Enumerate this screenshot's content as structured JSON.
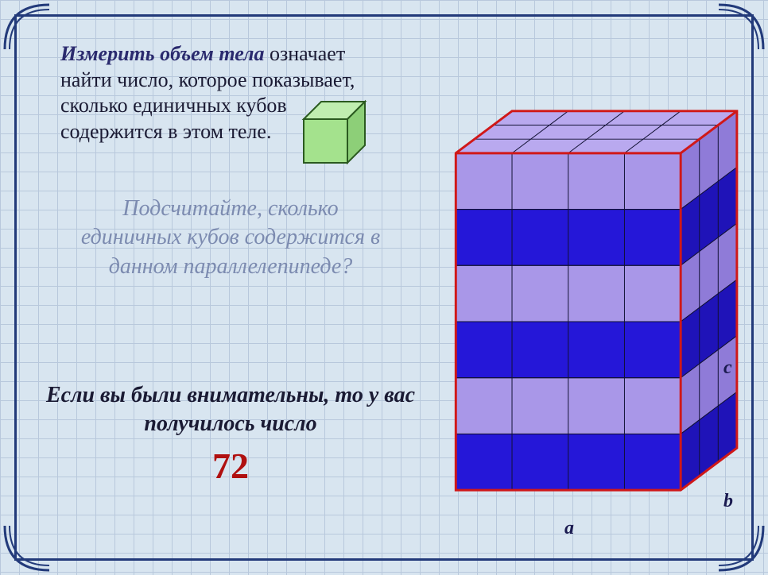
{
  "definition": {
    "lead": "Измерить объем тела",
    "body": " означает найти число, которое показывает, сколько единичных кубов содержится в этом теле."
  },
  "question": "Подсчитайте, сколько единичных кубов содержится в данном параллелепипеде?",
  "answer": {
    "text": "Если вы были внимательны, то у вас получилось число",
    "number": "72"
  },
  "axis_labels": {
    "a": "a",
    "b": "b",
    "c": "c"
  },
  "small_cube": {
    "face_color": "#a4e28d",
    "top_color": "#c0eeb0",
    "side_color": "#8dcf78",
    "edge_color": "#2b5a20"
  },
  "parallelepiped": {
    "cols": 4,
    "rows": 6,
    "depth": 3,
    "row_colors_front": [
      "#a997e8",
      "#2517d8",
      "#a997e8",
      "#2517d8",
      "#a997e8",
      "#2517d8"
    ],
    "row_colors_side": [
      "#8f7bd8",
      "#1f13b8",
      "#8f7bd8",
      "#1f13b8",
      "#8f7bd8",
      "#1f13b8"
    ],
    "top_color": "#b9a9ef",
    "edge_color": "#111133",
    "outline_color": "#d01818",
    "outline_width": 3
  },
  "frame_color": "#223a7a",
  "grid": {
    "bg_color": "#d8e5f0",
    "line_color": "#b8c8dc",
    "cell": 24
  }
}
